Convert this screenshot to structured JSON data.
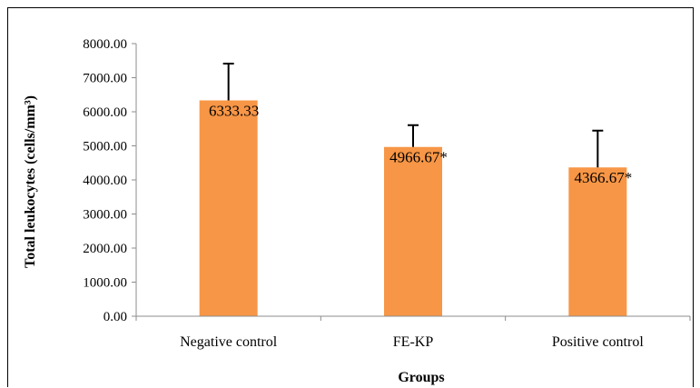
{
  "chart_data": {
    "type": "bar",
    "categories": [
      "Negative control",
      "FE-KP",
      "Positive control"
    ],
    "values": [
      6333.33,
      4966.67,
      4366.67
    ],
    "errors": [
      1080,
      640,
      1080
    ],
    "data_labels": [
      "6333.33",
      "4966.67*",
      "4366.67*"
    ],
    "title": "",
    "xlabel": "Groups",
    "ylabel": "Total leukocytes (cells/mm³)",
    "ylim": [
      0,
      8000
    ],
    "yticks": [
      0,
      1000,
      2000,
      3000,
      4000,
      5000,
      6000,
      7000,
      8000
    ],
    "ytick_labels": [
      "0.00",
      "1000.00",
      "2000.00",
      "3000.00",
      "4000.00",
      "5000.00",
      "6000.00",
      "7000.00",
      "8000.00"
    ],
    "grid": false,
    "legend": "none",
    "bar_color": "#F79646",
    "error_bar_color": "#000000"
  }
}
